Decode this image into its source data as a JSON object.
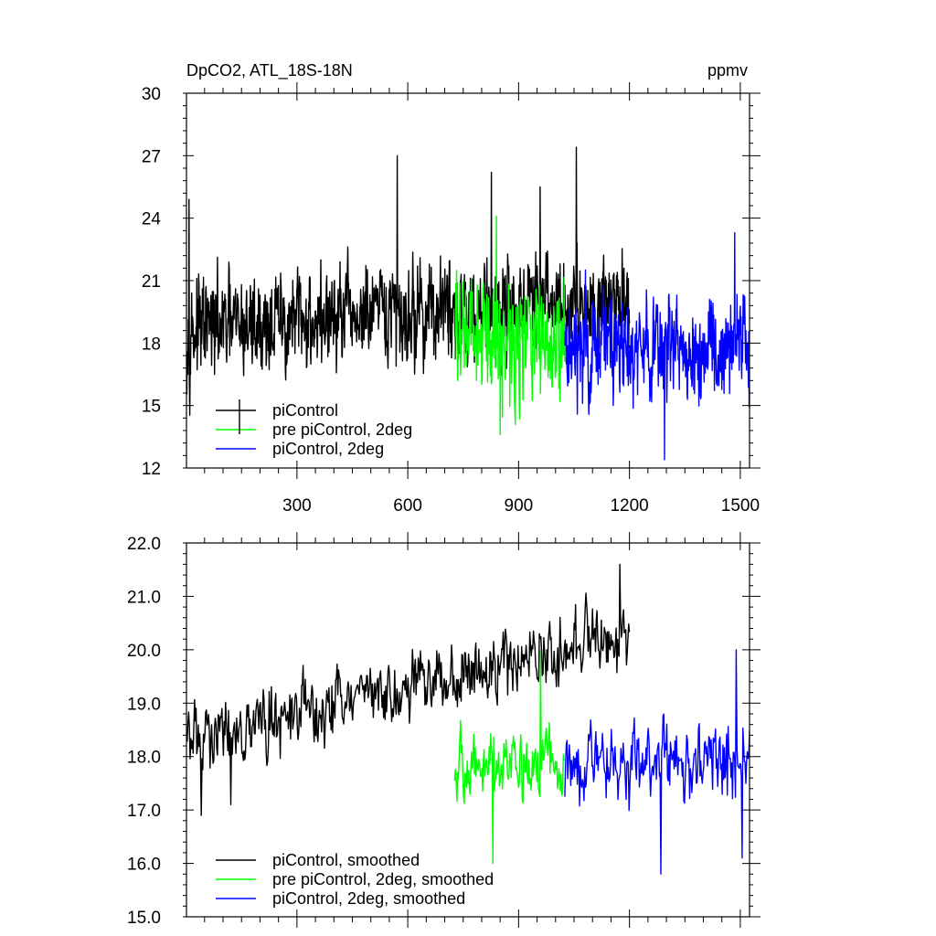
{
  "chart_data": [
    {
      "type": "line",
      "title": "DpCO2, ATL_18S-18N",
      "units": "ppmv",
      "xlim": [
        1,
        1525
      ],
      "ylim": [
        12,
        30
      ],
      "x_ticks": [
        300,
        600,
        900,
        1200,
        1500
      ],
      "x_tick_labels": [
        "300",
        "600",
        "900",
        "1200",
        "1500"
      ],
      "y_ticks": [
        12,
        15,
        18,
        21,
        24,
        27,
        30
      ],
      "y_tick_labels": [
        "12",
        "15",
        "18",
        "21",
        "24",
        "27",
        "30"
      ],
      "grid": false,
      "legend_position": "bottom-left",
      "series": [
        {
          "name": "piControl",
          "color": "#000000",
          "x_start": 1,
          "x_end": 1200,
          "baseline_start": 18.6,
          "baseline_end": 20.2,
          "noise": 1.7,
          "points": 1200,
          "peaks": [
            [
              8,
              24.9
            ],
            [
              572,
              27.0
            ],
            [
              1056,
              27.4
            ],
            [
              826,
              26.2
            ],
            [
              958,
              25.5
            ]
          ]
        },
        {
          "name": "pre piControl, 2deg",
          "color": "#00ff00",
          "x_start": 727,
          "x_end": 1025,
          "baseline_start": 18.4,
          "baseline_end": 18.0,
          "noise": 1.9,
          "points": 298,
          "peaks": [
            [
              840,
              24.1
            ],
            [
              850,
              13.6
            ]
          ]
        },
        {
          "name": "piControl, 2deg",
          "color": "#0000ff",
          "x_start": 1025,
          "x_end": 1525,
          "baseline_start": 18.0,
          "baseline_end": 17.8,
          "noise": 1.8,
          "points": 500,
          "peaks": [
            [
              1295,
              12.4
            ],
            [
              1485,
              23.3
            ]
          ]
        }
      ]
    },
    {
      "type": "line",
      "title": "",
      "units": "",
      "xlim": [
        1,
        1525
      ],
      "ylim": [
        15,
        22
      ],
      "x_ticks": [
        300,
        600,
        900,
        1200,
        1500
      ],
      "x_tick_labels": [],
      "y_ticks": [
        15,
        16,
        17,
        18,
        19,
        20,
        21,
        22
      ],
      "y_tick_labels": [
        "15.0",
        "16.0",
        "17.0",
        "18.0",
        "19.0",
        "20.0",
        "21.0",
        "22.0"
      ],
      "grid": false,
      "legend_position": "bottom-left",
      "series": [
        {
          "name": "piControl, smoothed",
          "color": "#000000",
          "x_start": 1,
          "x_end": 1200,
          "baseline_start": 18.3,
          "baseline_end": 20.3,
          "noise": 0.45,
          "points": 600,
          "peaks": [
            [
              40,
              16.9
            ],
            [
              120,
              17.1
            ],
            [
              1175,
              21.6
            ]
          ]
        },
        {
          "name": "pre piControl, 2deg, smoothed",
          "color": "#00ff00",
          "x_start": 727,
          "x_end": 1025,
          "baseline_start": 17.8,
          "baseline_end": 17.9,
          "noise": 0.45,
          "points": 150,
          "peaks": [
            [
              830,
              16.0
            ],
            [
              960,
              20.0
            ]
          ]
        },
        {
          "name": "piControl, 2deg, smoothed",
          "color": "#0000ff",
          "x_start": 1025,
          "x_end": 1525,
          "baseline_start": 17.9,
          "baseline_end": 17.9,
          "noise": 0.5,
          "points": 250,
          "peaks": [
            [
              1285,
              15.8
            ],
            [
              1490,
              20.0
            ],
            [
              1505,
              16.1
            ]
          ]
        }
      ]
    }
  ]
}
